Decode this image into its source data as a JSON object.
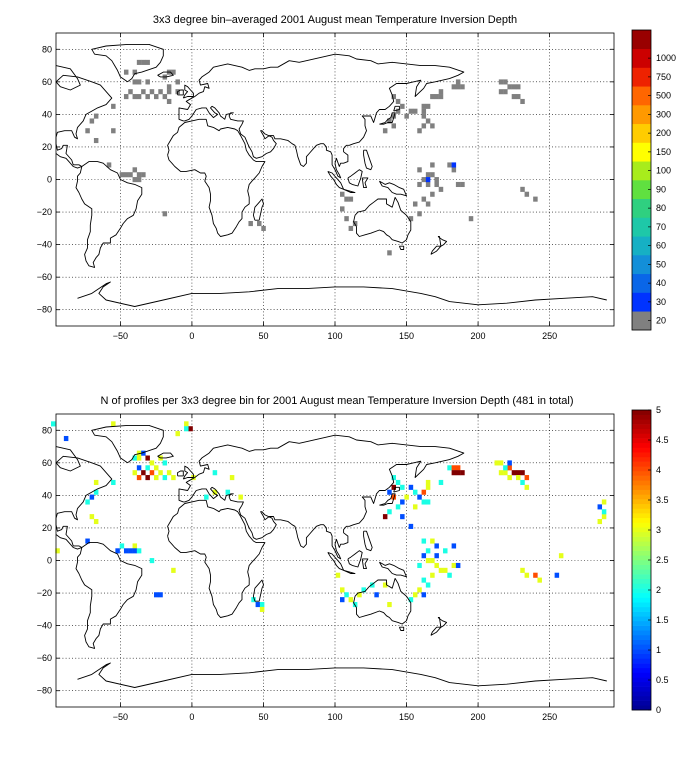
{
  "chart_data": [
    {
      "type": "heatmap",
      "title": "3x3 degree bin–averaged 2001 August mean Temperature Inversion Depth",
      "xlabel": "",
      "ylabel": "",
      "xlim": [
        -95,
        295
      ],
      "ylim": [
        -90,
        90
      ],
      "grid": true,
      "xticks": [
        -50,
        0,
        50,
        100,
        150,
        200,
        250
      ],
      "yticks": [
        -80,
        -60,
        -40,
        -20,
        0,
        20,
        40,
        60,
        80
      ],
      "xtick_labels": [
        "−50",
        "0",
        "50",
        "100",
        "150",
        "200",
        "250"
      ],
      "ytick_labels": [
        "−80",
        "−60",
        "−40",
        "−20",
        "0",
        "20",
        "40",
        "60",
        "80"
      ],
      "colorbar": {
        "labels": [
          "20",
          "30",
          "40",
          "50",
          "60",
          "70",
          "80",
          "90",
          "100",
          "150",
          "200",
          "300",
          "500",
          "750",
          "1000"
        ],
        "colors": [
          "#808080",
          "#0033ff",
          "#0a66e8",
          "#138fd8",
          "#16b0c4",
          "#1ec8a8",
          "#2fd080",
          "#60e040",
          "#a8ec1c",
          "#ffff00",
          "#ffcc00",
          "#ff9900",
          "#ff6600",
          "#ee2200",
          "#cc0000",
          "#990000"
        ]
      },
      "cell_colors": {
        "g": "#808080",
        "b": "#0033ff"
      },
      "cells": [
        [
          -37,
          72,
          "g"
        ],
        [
          -34,
          72,
          "g"
        ],
        [
          -31,
          72,
          "g"
        ],
        [
          -46,
          66,
          "g"
        ],
        [
          -40,
          66,
          "g"
        ],
        [
          -16,
          66,
          "g"
        ],
        [
          -13,
          66,
          "g"
        ],
        [
          -19,
          63,
          "g"
        ],
        [
          -40,
          60,
          "g"
        ],
        [
          -37,
          60,
          "g"
        ],
        [
          -31,
          60,
          "g"
        ],
        [
          -10,
          60,
          "g"
        ],
        [
          -16,
          57,
          "g"
        ],
        [
          -43,
          54,
          "g"
        ],
        [
          -34,
          54,
          "g"
        ],
        [
          -28,
          54,
          "g"
        ],
        [
          -22,
          54,
          "g"
        ],
        [
          -16,
          54,
          "g"
        ],
        [
          -10,
          54,
          "g"
        ],
        [
          -46,
          51,
          "g"
        ],
        [
          -40,
          51,
          "g"
        ],
        [
          -37,
          51,
          "g"
        ],
        [
          -31,
          51,
          "g"
        ],
        [
          -25,
          51,
          "g"
        ],
        [
          -19,
          51,
          "g"
        ],
        [
          -16,
          48,
          "g"
        ],
        [
          -55,
          45,
          "g"
        ],
        [
          -67,
          39,
          "g"
        ],
        [
          -70,
          36,
          "g"
        ],
        [
          -73,
          30,
          "g"
        ],
        [
          -55,
          30,
          "g"
        ],
        [
          -67,
          24,
          "g"
        ],
        [
          -58,
          9,
          "g"
        ],
        [
          -40,
          6,
          "g"
        ],
        [
          -49,
          3,
          "g"
        ],
        [
          -46,
          3,
          "g"
        ],
        [
          -43,
          3,
          "g"
        ],
        [
          -37,
          3,
          "g"
        ],
        [
          -34,
          3,
          "g"
        ],
        [
          -40,
          0,
          "g"
        ],
        [
          -37,
          0,
          "g"
        ],
        [
          -19,
          -21,
          "g"
        ],
        [
          41,
          -27,
          "g"
        ],
        [
          47,
          -27,
          "g"
        ],
        [
          50,
          -30,
          "g"
        ],
        [
          141,
          51,
          "g"
        ],
        [
          144,
          48,
          "g"
        ],
        [
          147,
          45,
          "g"
        ],
        [
          144,
          42,
          "g"
        ],
        [
          153,
          42,
          "g"
        ],
        [
          156,
          42,
          "g"
        ],
        [
          141,
          39,
          "g"
        ],
        [
          150,
          39,
          "g"
        ],
        [
          138,
          36,
          "g"
        ],
        [
          141,
          33,
          "g"
        ],
        [
          135,
          30,
          "g"
        ],
        [
          168,
          51,
          "g"
        ],
        [
          171,
          51,
          "g"
        ],
        [
          174,
          51,
          "g"
        ],
        [
          174,
          54,
          "g"
        ],
        [
          186,
          60,
          "g"
        ],
        [
          183,
          57,
          "g"
        ],
        [
          186,
          57,
          "g"
        ],
        [
          189,
          57,
          "g"
        ],
        [
          162,
          45,
          "g"
        ],
        [
          165,
          45,
          "g"
        ],
        [
          162,
          42,
          "g"
        ],
        [
          162,
          39,
          "g"
        ],
        [
          165,
          36,
          "g"
        ],
        [
          159,
          30,
          "g"
        ],
        [
          162,
          33,
          "g"
        ],
        [
          168,
          33,
          "g"
        ],
        [
          159,
          6,
          "g"
        ],
        [
          168,
          9,
          "g"
        ],
        [
          165,
          3,
          "g"
        ],
        [
          168,
          3,
          "g"
        ],
        [
          162,
          0,
          "g"
        ],
        [
          171,
          0,
          "g"
        ],
        [
          159,
          -3,
          "g"
        ],
        [
          165,
          -3,
          "g"
        ],
        [
          174,
          -6,
          "g"
        ],
        [
          168,
          -9,
          "g"
        ],
        [
          162,
          -12,
          "g"
        ],
        [
          156,
          -15,
          "g"
        ],
        [
          165,
          -15,
          "g"
        ],
        [
          159,
          -21,
          "g"
        ],
        [
          153,
          -24,
          "g"
        ],
        [
          171,
          -3,
          "g"
        ],
        [
          186,
          -3,
          "g"
        ],
        [
          189,
          -3,
          "g"
        ],
        [
          180,
          9,
          "g"
        ],
        [
          183,
          6,
          "g"
        ],
        [
          231,
          -6,
          "g"
        ],
        [
          234,
          -9,
          "g"
        ],
        [
          240,
          -12,
          "g"
        ],
        [
          195,
          -24,
          "g"
        ],
        [
          105,
          -9,
          "g"
        ],
        [
          108,
          -12,
          "g"
        ],
        [
          111,
          -12,
          "g"
        ],
        [
          105,
          -18,
          "g"
        ],
        [
          108,
          -24,
          "g"
        ],
        [
          111,
          -30,
          "g"
        ],
        [
          114,
          -27,
          "g"
        ],
        [
          216,
          54,
          "g"
        ],
        [
          219,
          54,
          "g"
        ],
        [
          222,
          57,
          "g"
        ],
        [
          225,
          57,
          "g"
        ],
        [
          228,
          57,
          "g"
        ],
        [
          225,
          51,
          "g"
        ],
        [
          228,
          51,
          "g"
        ],
        [
          231,
          48,
          "g"
        ],
        [
          219,
          60,
          "g"
        ],
        [
          216,
          60,
          "g"
        ],
        [
          165,
          0,
          "b"
        ],
        [
          183,
          9,
          "b"
        ],
        [
          138,
          -45,
          "g"
        ]
      ]
    },
    {
      "type": "heatmap",
      "title": "N of profiles per 3x3 degree bin for 2001 August mean Temperature Inversion Depth  (481 in total)",
      "xlabel": "",
      "ylabel": "",
      "xlim": [
        -95,
        295
      ],
      "ylim": [
        -90,
        90
      ],
      "grid": true,
      "xticks": [
        -50,
        0,
        50,
        100,
        150,
        200,
        250
      ],
      "yticks": [
        -80,
        -60,
        -40,
        -20,
        0,
        20,
        40,
        60,
        80
      ],
      "xtick_labels": [
        "−50",
        "0",
        "50",
        "100",
        "150",
        "200",
        "250"
      ],
      "ytick_labels": [
        "−80",
        "−60",
        "−40",
        "−20",
        "0",
        "20",
        "40",
        "60",
        "80"
      ],
      "colorbar": {
        "range": [
          0,
          5
        ],
        "ticks": [
          "0",
          "0.5",
          "1",
          "1.5",
          "2",
          "2.5",
          "3",
          "3.5",
          "4",
          "4.5",
          "5"
        ]
      },
      "cell_values": {
        "1": 1.0,
        "2": 2.0,
        "3": 3.0,
        "4": 4.0,
        "5": 5.0
      },
      "cells": [
        [
          -97,
          84,
          2
        ],
        [
          -55,
          84,
          3
        ],
        [
          -4,
          84,
          3
        ],
        [
          -1,
          81,
          5
        ],
        [
          -4,
          81,
          2
        ],
        [
          -10,
          78,
          3
        ],
        [
          -88,
          75,
          1
        ],
        [
          -37,
          66,
          3
        ],
        [
          -34,
          66,
          1
        ],
        [
          -40,
          63,
          2
        ],
        [
          -37,
          63,
          3
        ],
        [
          -31,
          63,
          5
        ],
        [
          -28,
          60,
          3
        ],
        [
          -22,
          63,
          3
        ],
        [
          -19,
          60,
          2
        ],
        [
          -37,
          57,
          1
        ],
        [
          -31,
          57,
          2
        ],
        [
          -25,
          57,
          3
        ],
        [
          -40,
          54,
          3
        ],
        [
          -34,
          54,
          5
        ],
        [
          -28,
          54,
          4
        ],
        [
          -22,
          54,
          3
        ],
        [
          -16,
          54,
          3
        ],
        [
          -37,
          51,
          4
        ],
        [
          -31,
          51,
          5
        ],
        [
          -25,
          51,
          3
        ],
        [
          -19,
          51,
          2
        ],
        [
          -13,
          51,
          3
        ],
        [
          -55,
          48,
          2
        ],
        [
          -67,
          48,
          3
        ],
        [
          -67,
          42,
          2
        ],
        [
          -70,
          39,
          1
        ],
        [
          -73,
          36,
          2
        ],
        [
          -70,
          27,
          3
        ],
        [
          -67,
          24,
          3
        ],
        [
          -94,
          6,
          3
        ],
        [
          -73,
          12,
          1
        ],
        [
          -49,
          9,
          2
        ],
        [
          -40,
          9,
          3
        ],
        [
          -52,
          6,
          1
        ],
        [
          -46,
          6,
          1
        ],
        [
          -43,
          6,
          1
        ],
        [
          -40,
          6,
          1
        ],
        [
          -37,
          6,
          2
        ],
        [
          -28,
          0,
          2
        ],
        [
          -13,
          -6,
          3
        ],
        [
          -25,
          -21,
          1
        ],
        [
          -22,
          -21,
          1
        ],
        [
          1,
          51,
          3
        ],
        [
          16,
          54,
          2
        ],
        [
          28,
          51,
          3
        ],
        [
          16,
          42,
          3
        ],
        [
          25,
          42,
          2
        ],
        [
          10,
          39,
          2
        ],
        [
          34,
          39,
          3
        ],
        [
          43,
          -24,
          2
        ],
        [
          46,
          -27,
          1
        ],
        [
          49,
          -27,
          2
        ],
        [
          49,
          -30,
          3
        ],
        [
          141,
          51,
          2
        ],
        [
          144,
          48,
          2
        ],
        [
          141,
          45,
          5
        ],
        [
          138,
          42,
          1
        ],
        [
          141,
          39,
          4
        ],
        [
          147,
          45,
          2
        ],
        [
          153,
          45,
          1
        ],
        [
          150,
          39,
          3
        ],
        [
          147,
          36,
          1
        ],
        [
          144,
          33,
          2
        ],
        [
          138,
          30,
          2
        ],
        [
          135,
          27,
          5
        ],
        [
          156,
          42,
          2
        ],
        [
          162,
          42,
          4
        ],
        [
          165,
          45,
          3
        ],
        [
          165,
          48,
          3
        ],
        [
          159,
          39,
          1
        ],
        [
          162,
          36,
          2
        ],
        [
          156,
          33,
          3
        ],
        [
          165,
          36,
          2
        ],
        [
          147,
          27,
          1
        ],
        [
          153,
          21,
          1
        ],
        [
          174,
          48,
          2
        ],
        [
          180,
          57,
          2
        ],
        [
          183,
          57,
          4
        ],
        [
          186,
          57,
          4
        ],
        [
          183,
          54,
          5
        ],
        [
          189,
          54,
          5
        ],
        [
          186,
          54,
          5
        ],
        [
          162,
          12,
          2
        ],
        [
          168,
          12,
          3
        ],
        [
          171,
          9,
          1
        ],
        [
          165,
          6,
          2
        ],
        [
          162,
          3,
          1
        ],
        [
          165,
          0,
          3
        ],
        [
          168,
          0,
          3
        ],
        [
          159,
          -3,
          2
        ],
        [
          171,
          -3,
          3
        ],
        [
          174,
          -6,
          3
        ],
        [
          168,
          -9,
          3
        ],
        [
          177,
          -6,
          3
        ],
        [
          180,
          -9,
          2
        ],
        [
          183,
          -3,
          3
        ],
        [
          186,
          -3,
          1
        ],
        [
          162,
          -12,
          2
        ],
        [
          165,
          -15,
          2
        ],
        [
          159,
          -18,
          3
        ],
        [
          156,
          -21,
          3
        ],
        [
          153,
          -24,
          2
        ],
        [
          162,
          -21,
          1
        ],
        [
          171,
          3,
          1
        ],
        [
          177,
          6,
          2
        ],
        [
          183,
          9,
          1
        ],
        [
          231,
          -6,
          3
        ],
        [
          234,
          -9,
          3
        ],
        [
          240,
          -9,
          4
        ],
        [
          243,
          -12,
          3
        ],
        [
          255,
          -9,
          1
        ],
        [
          216,
          54,
          3
        ],
        [
          219,
          54,
          3
        ],
        [
          222,
          57,
          4
        ],
        [
          225,
          54,
          5
        ],
        [
          228,
          54,
          5
        ],
        [
          231,
          54,
          5
        ],
        [
          234,
          51,
          4
        ],
        [
          222,
          60,
          1
        ],
        [
          213,
          60,
          3
        ],
        [
          216,
          60,
          3
        ],
        [
          219,
          57,
          2
        ],
        [
          222,
          51,
          3
        ],
        [
          228,
          51,
          3
        ],
        [
          231,
          48,
          2
        ],
        [
          234,
          45,
          3
        ],
        [
          102,
          -9,
          3
        ],
        [
          105,
          -18,
          3
        ],
        [
          108,
          -21,
          2
        ],
        [
          111,
          -24,
          3
        ],
        [
          105,
          -24,
          1
        ],
        [
          114,
          -27,
          2
        ],
        [
          117,
          -21,
          3
        ],
        [
          120,
          -18,
          2
        ],
        [
          126,
          -15,
          2
        ],
        [
          135,
          -15,
          3
        ],
        [
          129,
          -21,
          1
        ],
        [
          138,
          -27,
          3
        ],
        [
          258,
          3,
          3
        ],
        [
          288,
          27,
          3
        ],
        [
          288,
          30,
          2
        ],
        [
          285,
          33,
          1
        ],
        [
          288,
          36,
          3
        ],
        [
          285,
          24,
          3
        ]
      ]
    }
  ]
}
